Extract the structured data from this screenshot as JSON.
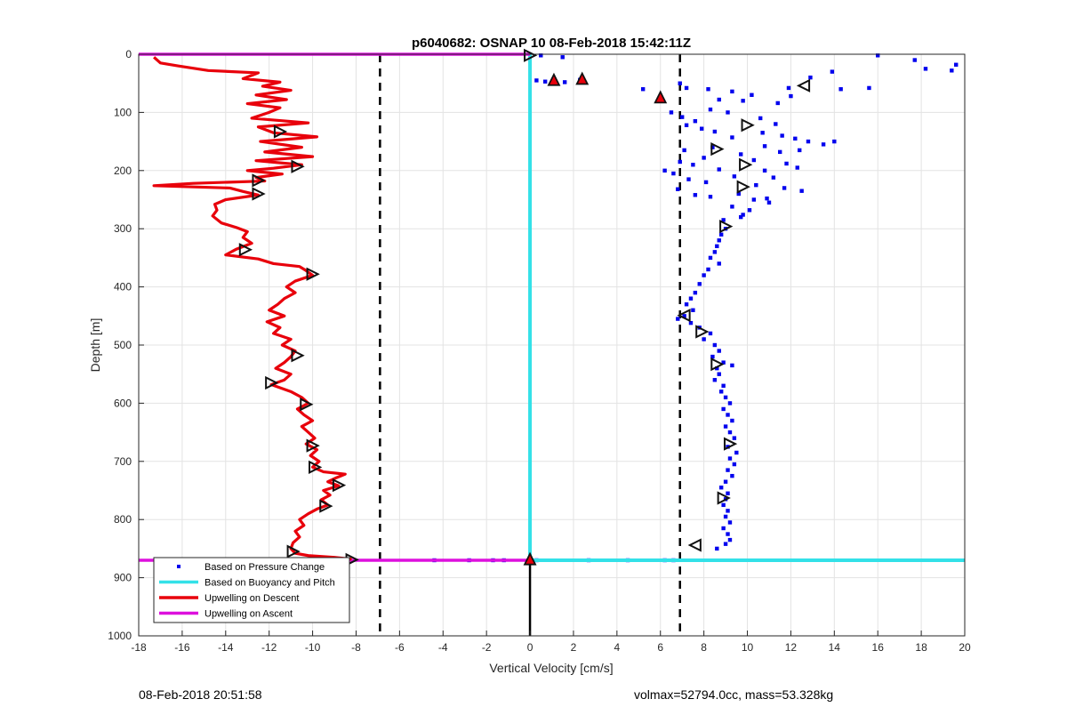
{
  "chart_data": {
    "type": "scatter",
    "title": "p6040682: OSNAP 10 08-Feb-2018 15:42:11Z",
    "xlabel": "Vertical Velocity [cm/s]",
    "ylabel": "Depth [m]",
    "xlim": [
      -18,
      20
    ],
    "ylim": [
      0,
      1000
    ],
    "y_reversed": true,
    "grid": true,
    "x_ticks": [
      -18,
      -16,
      -14,
      -12,
      -10,
      -8,
      -6,
      -4,
      -2,
      0,
      2,
      4,
      6,
      8,
      10,
      12,
      14,
      16,
      18,
      20
    ],
    "y_ticks": [
      0,
      100,
      200,
      300,
      400,
      500,
      600,
      700,
      800,
      900,
      1000
    ],
    "legend_position": "bottom-left",
    "legend": [
      {
        "label": "Based on Pressure Change",
        "style": "dot",
        "color": "#0000ee"
      },
      {
        "label": "Based on Buoyancy and Pitch",
        "style": "line",
        "color": "#33e1e8"
      },
      {
        "label": "Upwelling on Descent",
        "style": "line",
        "color": "#e8000b"
      },
      {
        "label": "Upwelling on Ascent",
        "style": "line",
        "color": "#dd10dd"
      }
    ],
    "reference_lines": [
      {
        "x": -6.9,
        "style": "dashed",
        "color": "#000000"
      },
      {
        "x": 6.9,
        "style": "dashed",
        "color": "#000000"
      },
      {
        "x": 0,
        "from_depth": 870,
        "to_depth": 1000,
        "style": "solid",
        "color": "#000000"
      }
    ],
    "buoyancy_pitch_series": {
      "name": "Based on Buoyancy and Pitch",
      "color": "#33e1e8",
      "points": [
        [
          0,
          0
        ],
        [
          0,
          870
        ],
        [
          20,
          870
        ]
      ]
    },
    "ascent_series": {
      "name": "Upwelling on Ascent",
      "color": "#dd10dd",
      "points": [
        [
          -18,
          0
        ],
        [
          0,
          0
        ],
        [
          -18,
          870
        ],
        [
          0,
          870
        ]
      ]
    },
    "descent_series": {
      "name": "Upwelling on Descent",
      "color": "#e8000b",
      "points": [
        [
          -17.3,
          5
        ],
        [
          -17.0,
          15
        ],
        [
          -16.2,
          20
        ],
        [
          -14.8,
          28
        ],
        [
          -12.5,
          32
        ],
        [
          -13.2,
          42
        ],
        [
          -11.5,
          48
        ],
        [
          -12.3,
          55
        ],
        [
          -11.0,
          62
        ],
        [
          -12.6,
          70
        ],
        [
          -11.2,
          78
        ],
        [
          -13.0,
          85
        ],
        [
          -11.5,
          92
        ],
        [
          -12.0,
          100
        ],
        [
          -12.8,
          110
        ],
        [
          -10.2,
          118
        ],
        [
          -12.5,
          125
        ],
        [
          -11.8,
          135
        ],
        [
          -9.8,
          142
        ],
        [
          -12.4,
          150
        ],
        [
          -10.5,
          160
        ],
        [
          -12.2,
          168
        ],
        [
          -10.0,
          176
        ],
        [
          -12.6,
          183
        ],
        [
          -10.5,
          190
        ],
        [
          -11.8,
          196
        ],
        [
          -13.0,
          200
        ],
        [
          -11.4,
          206
        ],
        [
          -12.6,
          212
        ],
        [
          -12.2,
          218
        ],
        [
          -15.5,
          222
        ],
        [
          -17.3,
          226
        ],
        [
          -13.8,
          230
        ],
        [
          -13.2,
          236
        ],
        [
          -12.5,
          242
        ],
        [
          -14.0,
          250
        ],
        [
          -14.5,
          258
        ],
        [
          -14.4,
          268
        ],
        [
          -14.6,
          278
        ],
        [
          -14.2,
          290
        ],
        [
          -13.5,
          298
        ],
        [
          -13.0,
          305
        ],
        [
          -13.2,
          315
        ],
        [
          -12.8,
          325
        ],
        [
          -13.5,
          335
        ],
        [
          -14.0,
          345
        ],
        [
          -12.5,
          352
        ],
        [
          -11.8,
          360
        ],
        [
          -10.6,
          365
        ],
        [
          -10.3,
          372
        ],
        [
          -10.0,
          380
        ],
        [
          -10.8,
          390
        ],
        [
          -11.2,
          400
        ],
        [
          -10.8,
          410
        ],
        [
          -11.3,
          420
        ],
        [
          -11.6,
          430
        ],
        [
          -12.0,
          440
        ],
        [
          -11.3,
          450
        ],
        [
          -12.1,
          460
        ],
        [
          -11.5,
          470
        ],
        [
          -11.8,
          480
        ],
        [
          -11.0,
          490
        ],
        [
          -11.4,
          500
        ],
        [
          -10.8,
          510
        ],
        [
          -11.0,
          520
        ],
        [
          -11.3,
          530
        ],
        [
          -11.7,
          540
        ],
        [
          -11.0,
          550
        ],
        [
          -11.3,
          560
        ],
        [
          -11.9,
          568
        ],
        [
          -11.0,
          580
        ],
        [
          -10.5,
          590
        ],
        [
          -10.2,
          600
        ],
        [
          -10.7,
          610
        ],
        [
          -10.4,
          620
        ],
        [
          -10.0,
          630
        ],
        [
          -10.5,
          640
        ],
        [
          -10.2,
          650
        ],
        [
          -9.9,
          660
        ],
        [
          -10.3,
          670
        ],
        [
          -9.8,
          680
        ],
        [
          -10.1,
          690
        ],
        [
          -9.7,
          700
        ],
        [
          -10.0,
          710
        ],
        [
          -9.5,
          718
        ],
        [
          -8.5,
          722
        ],
        [
          -8.9,
          728
        ],
        [
          -9.3,
          735
        ],
        [
          -8.8,
          742
        ],
        [
          -9.5,
          750
        ],
        [
          -9.2,
          758
        ],
        [
          -9.6,
          766
        ],
        [
          -9.3,
          775
        ],
        [
          -9.8,
          782
        ],
        [
          -10.2,
          790
        ],
        [
          -10.6,
          800
        ],
        [
          -10.4,
          810
        ],
        [
          -10.8,
          820
        ],
        [
          -10.6,
          830
        ],
        [
          -10.9,
          840
        ],
        [
          -11.0,
          850
        ],
        [
          -10.8,
          858
        ],
        [
          -10.2,
          862
        ],
        [
          -9.0,
          865
        ],
        [
          -8.2,
          868
        ]
      ]
    },
    "descent_markers": [
      {
        "x": -11.5,
        "y": 133
      },
      {
        "x": -10.7,
        "y": 193
      },
      {
        "x": -12.5,
        "y": 217
      },
      {
        "x": -12.5,
        "y": 240
      },
      {
        "x": -13.1,
        "y": 336
      },
      {
        "x": -10.0,
        "y": 378
      },
      {
        "x": -10.7,
        "y": 518
      },
      {
        "x": -11.9,
        "y": 565
      },
      {
        "x": -10.3,
        "y": 602
      },
      {
        "x": -10.0,
        "y": 673
      },
      {
        "x": -9.9,
        "y": 710
      },
      {
        "x": -8.8,
        "y": 741
      },
      {
        "x": -9.4,
        "y": 777
      },
      {
        "x": -10.9,
        "y": 855
      },
      {
        "x": -8.2,
        "y": 869
      }
    ],
    "ascent_markers": [
      {
        "x": 0.0,
        "y": 2,
        "dir": "right"
      },
      {
        "x": 12.6,
        "y": 54,
        "dir": "left"
      },
      {
        "x": 10.0,
        "y": 122,
        "dir": "right"
      },
      {
        "x": 8.6,
        "y": 163,
        "dir": "right"
      },
      {
        "x": 9.9,
        "y": 190,
        "dir": "right"
      },
      {
        "x": 9.8,
        "y": 228,
        "dir": "right"
      },
      {
        "x": 9.0,
        "y": 296,
        "dir": "right"
      },
      {
        "x": 7.1,
        "y": 449,
        "dir": "left"
      },
      {
        "x": 7.9,
        "y": 477,
        "dir": "right"
      },
      {
        "x": 8.6,
        "y": 533,
        "dir": "right"
      },
      {
        "x": 9.2,
        "y": 670,
        "dir": "right"
      },
      {
        "x": 8.9,
        "y": 763,
        "dir": "right"
      },
      {
        "x": 7.6,
        "y": 844,
        "dir": "left"
      }
    ],
    "filled_markers": [
      {
        "x": 1.1,
        "y": 44
      },
      {
        "x": 2.4,
        "y": 42
      },
      {
        "x": 6.0,
        "y": 74
      },
      {
        "x": 0.0,
        "y": 868
      }
    ],
    "pressure_points": [
      [
        0.5,
        2
      ],
      [
        1.5,
        5
      ],
      [
        16.0,
        2
      ],
      [
        17.7,
        10
      ],
      [
        19.6,
        18
      ],
      [
        18.2,
        25
      ],
      [
        19.4,
        28
      ],
      [
        13.9,
        30
      ],
      [
        12.9,
        40
      ],
      [
        11.9,
        58
      ],
      [
        14.3,
        60
      ],
      [
        15.6,
        58
      ],
      [
        0.3,
        45
      ],
      [
        0.7,
        47
      ],
      [
        1.6,
        48
      ],
      [
        2.3,
        44
      ],
      [
        6.9,
        50
      ],
      [
        7.2,
        58
      ],
      [
        5.2,
        60
      ],
      [
        8.2,
        60
      ],
      [
        9.3,
        64
      ],
      [
        10.2,
        70
      ],
      [
        12.0,
        72
      ],
      [
        8.7,
        78
      ],
      [
        9.8,
        80
      ],
      [
        11.4,
        84
      ],
      [
        6.5,
        100
      ],
      [
        7.0,
        108
      ],
      [
        7.6,
        115
      ],
      [
        8.3,
        95
      ],
      [
        9.1,
        100
      ],
      [
        10.6,
        110
      ],
      [
        11.3,
        120
      ],
      [
        7.2,
        122
      ],
      [
        7.9,
        128
      ],
      [
        8.5,
        133
      ],
      [
        10.7,
        135
      ],
      [
        11.6,
        140
      ],
      [
        9.3,
        143
      ],
      [
        12.2,
        145
      ],
      [
        12.8,
        150
      ],
      [
        13.5,
        155
      ],
      [
        14.0,
        150
      ],
      [
        10.8,
        158
      ],
      [
        8.4,
        160
      ],
      [
        7.1,
        165
      ],
      [
        11.5,
        168
      ],
      [
        12.4,
        165
      ],
      [
        9.7,
        172
      ],
      [
        8.0,
        178
      ],
      [
        10.3,
        182
      ],
      [
        6.9,
        185
      ],
      [
        7.5,
        190
      ],
      [
        11.8,
        188
      ],
      [
        12.3,
        195
      ],
      [
        8.7,
        198
      ],
      [
        10.8,
        200
      ],
      [
        6.2,
        200
      ],
      [
        6.6,
        205
      ],
      [
        9.4,
        210
      ],
      [
        11.2,
        212
      ],
      [
        7.3,
        215
      ],
      [
        8.1,
        220
      ],
      [
        10.4,
        225
      ],
      [
        11.7,
        230
      ],
      [
        6.8,
        232
      ],
      [
        12.5,
        235
      ],
      [
        9.6,
        240
      ],
      [
        8.3,
        245
      ],
      [
        10.9,
        248
      ],
      [
        7.6,
        242
      ],
      [
        11.0,
        255
      ],
      [
        9.3,
        262
      ],
      [
        10.1,
        268
      ],
      [
        9.8,
        276
      ],
      [
        9.7,
        280
      ],
      [
        10.3,
        250
      ],
      [
        8.9,
        285
      ],
      [
        9.0,
        300
      ],
      [
        8.8,
        310
      ],
      [
        8.7,
        320
      ],
      [
        8.6,
        330
      ],
      [
        8.5,
        340
      ],
      [
        8.3,
        350
      ],
      [
        8.7,
        360
      ],
      [
        8.2,
        370
      ],
      [
        8.0,
        380
      ],
      [
        7.8,
        395
      ],
      [
        7.6,
        410
      ],
      [
        7.4,
        420
      ],
      [
        7.2,
        430
      ],
      [
        7.5,
        440
      ],
      [
        7.1,
        450
      ],
      [
        6.8,
        455
      ],
      [
        7.4,
        462
      ],
      [
        7.8,
        470
      ],
      [
        8.3,
        480
      ],
      [
        8.0,
        490
      ],
      [
        8.5,
        500
      ],
      [
        8.7,
        510
      ],
      [
        8.4,
        520
      ],
      [
        8.9,
        530
      ],
      [
        8.6,
        540
      ],
      [
        9.3,
        535
      ],
      [
        8.7,
        550
      ],
      [
        8.5,
        560
      ],
      [
        8.9,
        570
      ],
      [
        8.8,
        580
      ],
      [
        9.0,
        590
      ],
      [
        9.2,
        600
      ],
      [
        8.9,
        610
      ],
      [
        9.1,
        620
      ],
      [
        9.3,
        630
      ],
      [
        9.0,
        640
      ],
      [
        9.2,
        650
      ],
      [
        9.4,
        660
      ],
      [
        9.1,
        675
      ],
      [
        9.5,
        685
      ],
      [
        9.2,
        695
      ],
      [
        9.4,
        705
      ],
      [
        9.1,
        715
      ],
      [
        9.3,
        725
      ],
      [
        9.0,
        735
      ],
      [
        8.8,
        745
      ],
      [
        9.1,
        755
      ],
      [
        9.0,
        765
      ],
      [
        8.9,
        775
      ],
      [
        9.1,
        785
      ],
      [
        9.0,
        795
      ],
      [
        9.2,
        805
      ],
      [
        8.9,
        815
      ],
      [
        9.1,
        825
      ],
      [
        9.2,
        835
      ],
      [
        9.0,
        842
      ],
      [
        8.6,
        850
      ],
      [
        -4.4,
        870
      ],
      [
        -2.8,
        870
      ],
      [
        -1.7,
        870
      ],
      [
        -1.2,
        870
      ],
      [
        0.3,
        870
      ],
      [
        2.7,
        870
      ],
      [
        4.5,
        870
      ],
      [
        6.2,
        870
      ],
      [
        6.6,
        870
      ]
    ]
  },
  "footer": {
    "left": "08-Feb-2018 20:51:58",
    "right": "volmax=52794.0cc, mass=53.328kg"
  }
}
